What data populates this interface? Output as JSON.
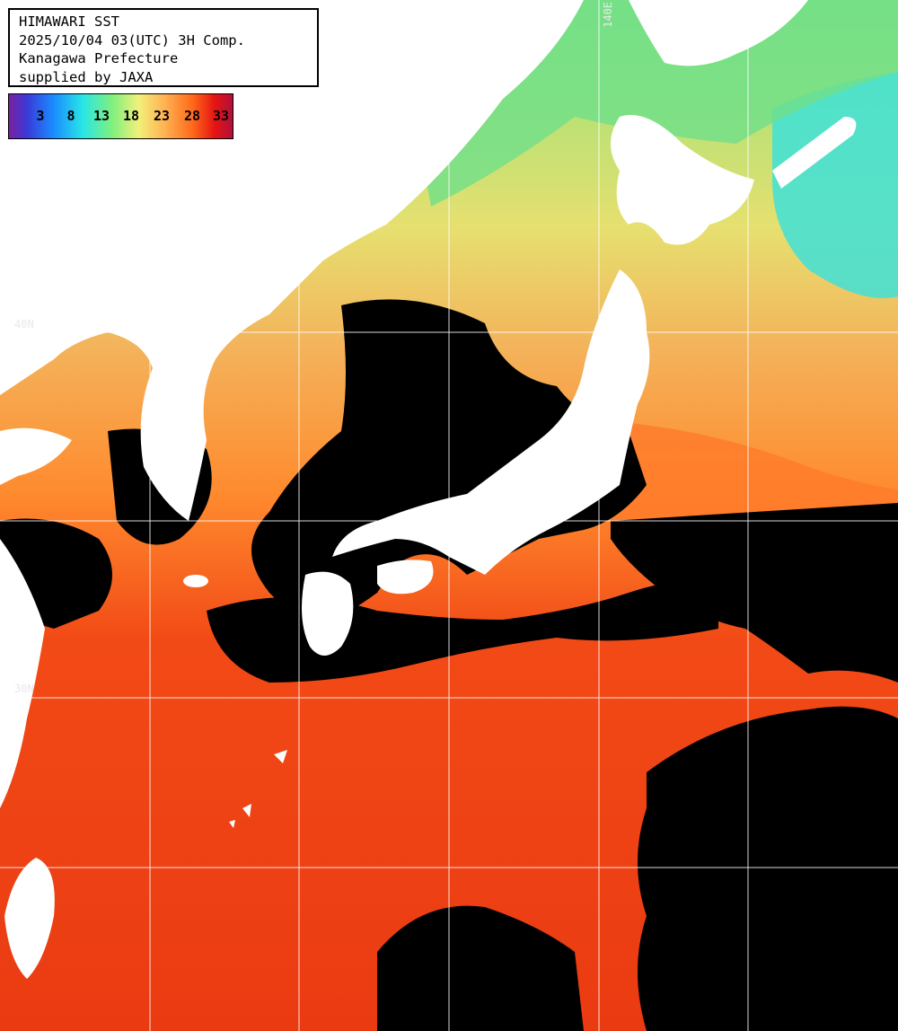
{
  "header": {
    "line1": "HIMAWARI SST",
    "line2": "2025/10/04 03(UTC) 3H Comp.",
    "line3": "Kanagawa Prefecture",
    "line4": "supplied by JAXA"
  },
  "legend": {
    "ticks": [
      "3",
      "8",
      "13",
      "18",
      "23",
      "28",
      "33"
    ]
  },
  "grid_labels": {
    "lat_40": "40N",
    "lat_30": "30N",
    "lon_140": "140E"
  },
  "colors": {
    "land": "#ffffff",
    "cloud": "#000000",
    "cold": "#28e6e6",
    "mid": "#f0e06a",
    "warm": "#ff7a22",
    "hot": "#ee3a12",
    "grid": "#ffffff"
  }
}
